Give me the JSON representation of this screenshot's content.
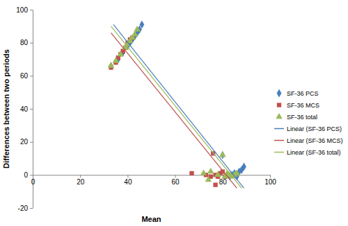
{
  "chart_data": {
    "type": "scatter",
    "xlabel": "Mean",
    "ylabel": "Differences between two periods",
    "xlim": [
      0,
      100
    ],
    "ylim": [
      -20,
      100
    ],
    "xticks": [
      0,
      20,
      40,
      60,
      80,
      100
    ],
    "yticks": [
      -20,
      0,
      20,
      40,
      60,
      80,
      100
    ],
    "grid": false,
    "legend": "right",
    "series": [
      {
        "name": "SF-36 PCS",
        "type": "scatter",
        "marker": "diamond",
        "color": "#4a7ebb",
        "x": [
          33,
          36,
          38,
          40,
          41,
          42,
          43,
          44,
          45,
          46,
          80,
          83,
          84,
          85,
          86,
          87,
          88,
          89
        ],
        "values": [
          66,
          70,
          74,
          78,
          80,
          82,
          84,
          86,
          88,
          91,
          12,
          -1,
          0,
          1,
          -1,
          2,
          3,
          5
        ]
      },
      {
        "name": "SF-36 MCS",
        "type": "scatter",
        "marker": "square",
        "color": "#c0504d",
        "x": [
          33,
          35,
          36,
          37,
          38,
          39,
          40,
          41,
          42,
          67,
          73,
          75,
          76,
          77,
          77,
          78,
          79,
          80,
          81,
          82
        ],
        "values": [
          65,
          68,
          71,
          73,
          75,
          77,
          80,
          82,
          83,
          1,
          0,
          -1,
          13,
          0,
          -6,
          -1,
          1,
          2,
          -1,
          0
        ]
      },
      {
        "name": "SF-36 total",
        "type": "scatter",
        "marker": "triangle",
        "color": "#9bbb59",
        "x": [
          33,
          35,
          37,
          39,
          40,
          41,
          42,
          43,
          44,
          72,
          74,
          75,
          78,
          80,
          81,
          82,
          83,
          84,
          85,
          86
        ],
        "values": [
          66,
          69,
          73,
          77,
          79,
          81,
          83,
          85,
          88,
          1,
          -3,
          2,
          0,
          12,
          -1,
          1,
          0,
          -1,
          0,
          1
        ]
      },
      {
        "name": "Linear (SF-36 PCS)",
        "type": "line",
        "line_style": "solid",
        "color": "#4a7ebb",
        "x": [
          34,
          89
        ],
        "values": [
          91,
          -8
        ]
      },
      {
        "name": "Linear (SF-36 MCS)",
        "type": "line",
        "line_style": "solid",
        "color": "#c0504d",
        "x": [
          33,
          86
        ],
        "values": [
          86,
          -8
        ]
      },
      {
        "name": "Linear (SF-36 total)",
        "type": "line",
        "line_style": "solid",
        "color": "#9bbb59",
        "x": [
          33,
          88
        ],
        "values": [
          90,
          -8
        ]
      }
    ]
  }
}
